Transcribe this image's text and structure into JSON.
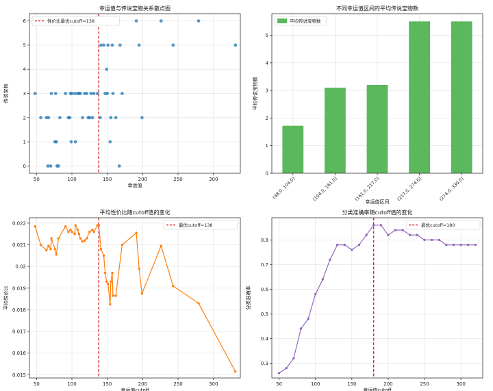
{
  "chart_data": [
    {
      "type": "scatter",
      "title": "幸运值与传说宝物关系散点图",
      "xlabel": "幸运值",
      "ylabel": "传说宝物",
      "xlim": [
        40,
        338
      ],
      "ylim": [
        -0.3,
        6.3
      ],
      "xticks": [
        50,
        100,
        150,
        200,
        250,
        300
      ],
      "yticks": [
        0,
        1,
        2,
        3,
        4,
        5,
        6
      ],
      "grid": true,
      "legend_position": "top-left",
      "color": "#1f77b4",
      "points": [
        {
          "x": 48,
          "y": 3
        },
        {
          "x": 56,
          "y": 2
        },
        {
          "x": 64,
          "y": 2
        },
        {
          "x": 66,
          "y": 0
        },
        {
          "x": 67,
          "y": 2
        },
        {
          "x": 70,
          "y": 0
        },
        {
          "x": 71,
          "y": 3
        },
        {
          "x": 76,
          "y": 1
        },
        {
          "x": 77,
          "y": 3
        },
        {
          "x": 78,
          "y": 1
        },
        {
          "x": 79,
          "y": 0
        },
        {
          "x": 81,
          "y": 0
        },
        {
          "x": 83,
          "y": 2
        },
        {
          "x": 91,
          "y": 3
        },
        {
          "x": 95,
          "y": 2
        },
        {
          "x": 97,
          "y": 2
        },
        {
          "x": 98,
          "y": 3
        },
        {
          "x": 99,
          "y": 1
        },
        {
          "x": 100,
          "y": 3
        },
        {
          "x": 104,
          "y": 3
        },
        {
          "x": 105,
          "y": 1
        },
        {
          "x": 108,
          "y": 3
        },
        {
          "x": 110,
          "y": 3
        },
        {
          "x": 112,
          "y": 3
        },
        {
          "x": 115,
          "y": 2
        },
        {
          "x": 118,
          "y": 3
        },
        {
          "x": 121,
          "y": 3
        },
        {
          "x": 123,
          "y": 2
        },
        {
          "x": 125,
          "y": 2
        },
        {
          "x": 127,
          "y": 3
        },
        {
          "x": 129,
          "y": 2
        },
        {
          "x": 131,
          "y": 3
        },
        {
          "x": 136,
          "y": 3
        },
        {
          "x": 138,
          "y": 6
        },
        {
          "x": 140,
          "y": 2
        },
        {
          "x": 141,
          "y": 5
        },
        {
          "x": 145,
          "y": 5
        },
        {
          "x": 147,
          "y": 3
        },
        {
          "x": 149,
          "y": 4
        },
        {
          "x": 150,
          "y": 3
        },
        {
          "x": 151,
          "y": 5
        },
        {
          "x": 154,
          "y": 1
        },
        {
          "x": 155,
          "y": 2
        },
        {
          "x": 157,
          "y": 5
        },
        {
          "x": 158,
          "y": 3
        },
        {
          "x": 162,
          "y": 2
        },
        {
          "x": 167,
          "y": 0
        },
        {
          "x": 168,
          "y": 5
        },
        {
          "x": 171,
          "y": 3
        },
        {
          "x": 191,
          "y": 6
        },
        {
          "x": 195,
          "y": 5
        },
        {
          "x": 199,
          "y": 2
        },
        {
          "x": 226,
          "y": 6
        },
        {
          "x": 243,
          "y": 5
        },
        {
          "x": 279,
          "y": 6
        },
        {
          "x": 331,
          "y": 5
        }
      ],
      "reference_line": {
        "x": 138,
        "label": "性价比最优cutoff=138",
        "color": "#d62728"
      }
    },
    {
      "type": "bar",
      "title": "不同幸运值区间的平均传说宝物数",
      "xlabel": "幸运值区间",
      "ylabel": "平均传说宝物数",
      "categories": [
        "(48.0, 104.0]",
        "(104.0, 161.0]",
        "(161.0, 217.0]",
        "(217.0, 274.0]",
        "(274.0, 330.0]"
      ],
      "series": [
        {
          "name": "平均传说宝物数",
          "values": [
            1.72,
            3.1,
            3.2,
            5.5,
            5.5
          ],
          "color": "#5cb85c"
        }
      ],
      "ylim": [
        0,
        5.78
      ],
      "yticks": [
        0,
        1,
        2,
        3,
        4,
        5
      ],
      "grid": true,
      "legend_position": "top-left"
    },
    {
      "type": "line",
      "title": "平均性价比随cutoff值的变化",
      "xlabel": "幸运值cutoff",
      "ylabel": "平均性价比",
      "xlim": [
        40,
        338
      ],
      "ylim": [
        0.01485,
        0.02225
      ],
      "xticks": [
        50,
        100,
        150,
        200,
        250,
        300
      ],
      "yticks": [
        0.015,
        0.016,
        0.017,
        0.018,
        0.019,
        0.02,
        0.021,
        0.022
      ],
      "grid": true,
      "legend_position": "top-right",
      "series": [
        {
          "color": "#ff7f0e",
          "x": [
            48,
            56,
            64,
            67,
            70,
            71,
            76,
            78,
            81,
            91,
            95,
            98,
            100,
            104,
            105,
            108,
            110,
            112,
            115,
            118,
            121,
            125,
            129,
            131,
            136,
            138,
            141,
            145,
            147,
            149,
            151,
            154,
            155,
            157,
            158,
            162,
            171,
            191,
            195,
            199,
            226,
            243,
            279,
            331
          ],
          "y": [
            0.02185,
            0.021,
            0.02075,
            0.02095,
            0.0208,
            0.0213,
            0.0208,
            0.02055,
            0.0213,
            0.02185,
            0.0216,
            0.0217,
            0.0216,
            0.0215,
            0.0219,
            0.0217,
            0.0215,
            0.0213,
            0.02115,
            0.0212,
            0.0213,
            0.0216,
            0.0217,
            0.0216,
            0.0219,
            0.0219,
            0.0208,
            0.0205,
            0.0197,
            0.0193,
            0.0192,
            0.01825,
            0.0193,
            0.0197,
            0.01865,
            0.01865,
            0.021,
            0.02155,
            0.0199,
            0.01875,
            0.02095,
            0.0191,
            0.0183,
            0.01515
          ]
        }
      ],
      "reference_line": {
        "x": 138,
        "label": "最优cutoff=138",
        "color": "#d62728"
      }
    },
    {
      "type": "line",
      "title": "分类准确率随cutoff值的变化",
      "xlabel": "幸运值cutoff",
      "ylabel": "分类准确率",
      "xlim": [
        40,
        330
      ],
      "ylim": [
        0.24,
        0.89
      ],
      "xticks": [
        50,
        100,
        150,
        200,
        250,
        300
      ],
      "yticks": [
        0.3,
        0.4,
        0.5,
        0.6,
        0.7,
        0.8
      ],
      "grid": true,
      "legend_position": "top-right",
      "series": [
        {
          "color": "#9467bd",
          "x": [
            50,
            60,
            70,
            80,
            90,
            100,
            110,
            120,
            130,
            140,
            150,
            160,
            170,
            180,
            190,
            200,
            210,
            220,
            230,
            240,
            250,
            260,
            270,
            280,
            290,
            300,
            310,
            320
          ],
          "y": [
            0.26,
            0.28,
            0.32,
            0.44,
            0.48,
            0.58,
            0.64,
            0.72,
            0.78,
            0.78,
            0.76,
            0.78,
            0.82,
            0.86,
            0.86,
            0.82,
            0.84,
            0.84,
            0.82,
            0.82,
            0.8,
            0.8,
            0.8,
            0.78,
            0.78,
            0.78,
            0.78,
            0.78
          ]
        }
      ],
      "reference_line": {
        "x": 180,
        "label": "最优cutoff=180",
        "color": "#d62728"
      }
    }
  ]
}
